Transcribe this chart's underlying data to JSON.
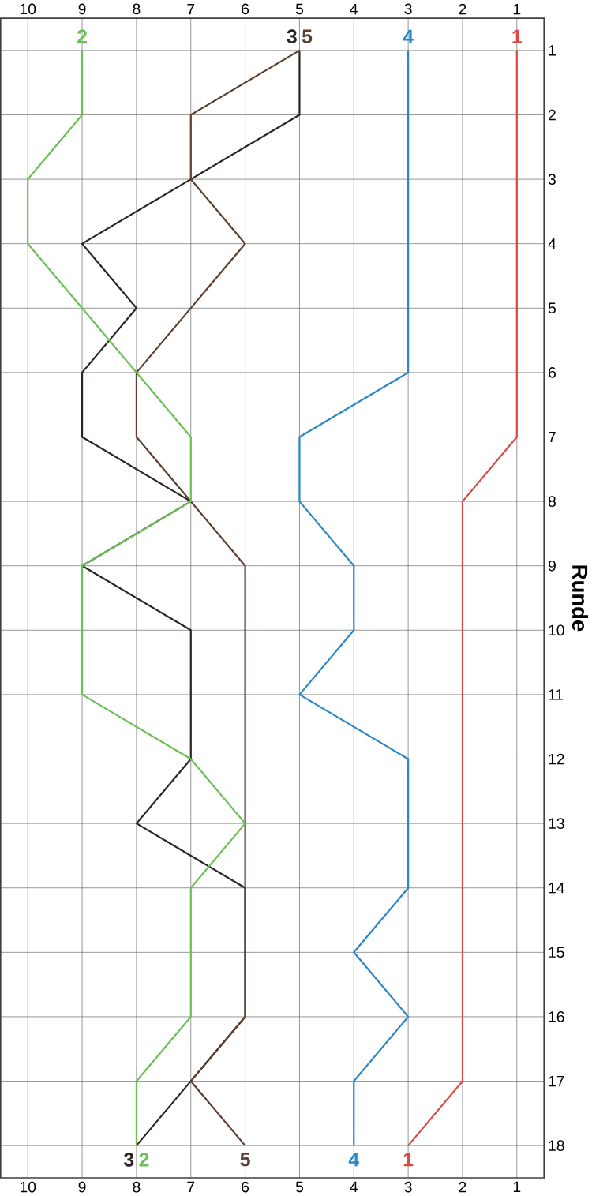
{
  "chart_data": {
    "type": "line",
    "ylabel": "Runde",
    "xlim": [
      10.5,
      0.5
    ],
    "xticks": [
      1,
      2,
      3,
      4,
      5,
      6,
      7,
      8,
      9,
      10
    ],
    "x2lim": [
      10.5,
      0.5
    ],
    "x2ticks": [
      1,
      2,
      3,
      4,
      5,
      6,
      7,
      8,
      9,
      10
    ],
    "ylim": [
      18.5,
      0.5
    ],
    "yticks": [
      1,
      2,
      3,
      4,
      5,
      6,
      7,
      8,
      9,
      10,
      11,
      12,
      13,
      14,
      15,
      16,
      17,
      18
    ],
    "grid": true,
    "line_style": "solid",
    "series": [
      {
        "name": "1",
        "color": "#d94a45",
        "x": [
          1,
          1,
          1,
          1,
          1,
          1,
          1,
          2,
          2,
          2,
          2,
          2,
          2,
          2,
          2,
          2,
          2,
          3
        ],
        "values": [
          1,
          2,
          3,
          4,
          5,
          6,
          7,
          8,
          9,
          10,
          11,
          12,
          13,
          14,
          15,
          16,
          17,
          18
        ]
      },
      {
        "name": "4",
        "color": "#2a86c8",
        "x": [
          3,
          3,
          3,
          3,
          3,
          3,
          5,
          5,
          4,
          4,
          5,
          3,
          3,
          3,
          4,
          3,
          4,
          4
        ],
        "values": [
          1,
          2,
          3,
          4,
          5,
          6,
          7,
          8,
          9,
          10,
          11,
          12,
          13,
          14,
          15,
          16,
          17,
          18
        ]
      },
      {
        "name": "3",
        "color": "#2b2624",
        "x": [
          5,
          5,
          7,
          9,
          8,
          9,
          9,
          7,
          9,
          7,
          7,
          7,
          8,
          6,
          6,
          6,
          7,
          8
        ],
        "values": [
          1,
          2,
          3,
          4,
          5,
          6,
          7,
          8,
          9,
          10,
          11,
          12,
          13,
          14,
          15,
          16,
          17,
          18
        ]
      },
      {
        "name": "5",
        "color": "#5b3f33",
        "x": [
          5,
          7,
          7,
          6,
          7,
          8,
          8,
          7,
          6,
          6,
          6,
          6,
          6,
          6,
          6,
          6,
          7,
          6
        ],
        "values": [
          1,
          2,
          3,
          4,
          5,
          6,
          7,
          8,
          9,
          10,
          11,
          12,
          13,
          14,
          15,
          16,
          17,
          18
        ]
      },
      {
        "name": "2",
        "color": "#6cbf55",
        "x": [
          9,
          9,
          10,
          10,
          9,
          8,
          7,
          7,
          9,
          9,
          9,
          7,
          6,
          7,
          7,
          7,
          8,
          8
        ],
        "values": [
          1,
          2,
          3,
          4,
          5,
          6,
          7,
          8,
          9,
          10,
          11,
          12,
          13,
          14,
          15,
          16,
          17,
          18
        ]
      }
    ]
  }
}
